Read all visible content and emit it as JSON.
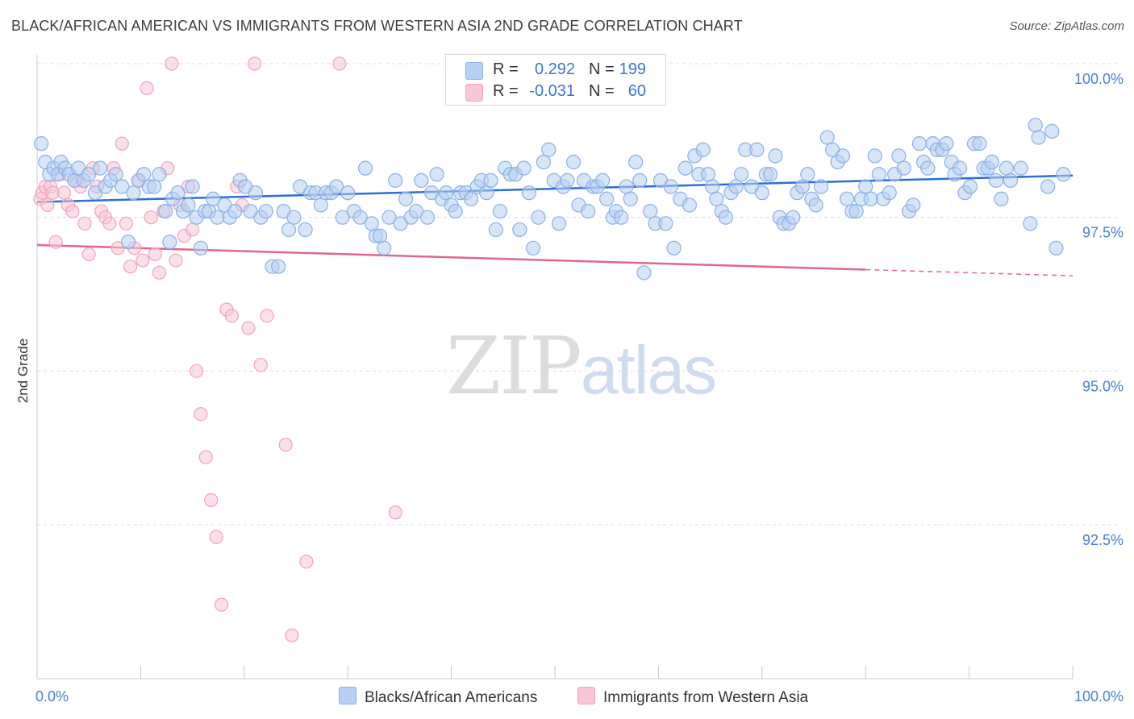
{
  "title": "BLACK/AFRICAN AMERICAN VS IMMIGRANTS FROM WESTERN ASIA 2ND GRADE CORRELATION CHART",
  "source": "Source: ZipAtlas.com",
  "watermark": {
    "zip": "ZIP",
    "atlas": "atlas"
  },
  "legend": {
    "blue": {
      "r_label": "R =",
      "r_value": "0.292",
      "n_label": "N =",
      "n_value": "199"
    },
    "pink": {
      "r_label": "R =",
      "r_value": "-0.031",
      "n_label": "N =",
      "n_value": "60"
    }
  },
  "bottom_legend": {
    "blue": "Blacks/African Americans",
    "pink": "Immigrants from Western Asia"
  },
  "colors": {
    "blue_fill": "#b7d0f3",
    "blue_stroke": "#8ab0e6",
    "blue_line": "#2d6fd2",
    "pink_fill": "#f9c6d5",
    "pink_stroke": "#f0a3bb",
    "pink_line": "#e2668f",
    "tick": "#4a7fd4",
    "grid": "#dcdcdc"
  },
  "chart_data": {
    "type": "scatter",
    "title": "BLACK/AFRICAN AMERICAN VS IMMIGRANTS FROM WESTERN ASIA 2ND GRADE CORRELATION CHART",
    "xlabel": "",
    "ylabel": "2nd Grade",
    "xlim": [
      0,
      100
    ],
    "ylim": [
      90.2,
      100.4
    ],
    "y_ticks": [
      92.5,
      95.0,
      97.5,
      100.0
    ],
    "y_tick_labels": [
      "92.5%",
      "95.0%",
      "97.5%",
      "100.0%"
    ],
    "x_tick_labels": [
      "0.0%",
      "100.0%"
    ],
    "grid": true,
    "legend_position": "top-center",
    "series": [
      {
        "name": "Blacks/African Americans",
        "color": "#8ab0e6",
        "trend": {
          "x": [
            0,
            100
          ],
          "y": [
            97.75,
            98.18
          ]
        },
        "points": [
          [
            0.4,
            98.7
          ],
          [
            0.8,
            98.4
          ],
          [
            1.2,
            98.2
          ],
          [
            1.6,
            98.3
          ],
          [
            2.0,
            98.2
          ],
          [
            2.3,
            98.4
          ],
          [
            2.7,
            98.3
          ],
          [
            3.1,
            98.2
          ],
          [
            3.6,
            98.1
          ],
          [
            4.0,
            98.3
          ],
          [
            4.5,
            98.1
          ],
          [
            5.0,
            98.2
          ],
          [
            5.6,
            97.9
          ],
          [
            6.1,
            98.3
          ],
          [
            6.6,
            98.0
          ],
          [
            7.1,
            98.1
          ],
          [
            7.6,
            98.2
          ],
          [
            8.2,
            98.0
          ],
          [
            8.8,
            97.1
          ],
          [
            9.3,
            97.9
          ],
          [
            9.8,
            98.1
          ],
          [
            10.3,
            98.2
          ],
          [
            10.8,
            98.0
          ],
          [
            11.3,
            98.0
          ],
          [
            11.8,
            98.2
          ],
          [
            12.4,
            97.6
          ],
          [
            12.8,
            97.1
          ],
          [
            13.1,
            97.8
          ],
          [
            13.6,
            97.9
          ],
          [
            14.1,
            97.6
          ],
          [
            14.6,
            97.7
          ],
          [
            15.0,
            98.0
          ],
          [
            15.4,
            97.5
          ],
          [
            15.8,
            97.0
          ],
          [
            16.2,
            97.6
          ],
          [
            16.6,
            97.6
          ],
          [
            17.0,
            97.8
          ],
          [
            17.4,
            97.5
          ],
          [
            18.1,
            97.7
          ],
          [
            18.6,
            97.5
          ],
          [
            19.1,
            97.6
          ],
          [
            19.6,
            98.1
          ],
          [
            20.1,
            98.0
          ],
          [
            20.6,
            97.6
          ],
          [
            21.1,
            97.9
          ],
          [
            21.6,
            97.5
          ],
          [
            22.1,
            97.6
          ],
          [
            22.7,
            96.7
          ],
          [
            23.3,
            96.7
          ],
          [
            23.8,
            97.6
          ],
          [
            24.3,
            97.3
          ],
          [
            24.8,
            97.5
          ],
          [
            25.4,
            98.0
          ],
          [
            25.9,
            97.3
          ],
          [
            26.4,
            97.9
          ],
          [
            26.9,
            97.9
          ],
          [
            27.4,
            97.7
          ],
          [
            27.9,
            97.9
          ],
          [
            28.4,
            97.9
          ],
          [
            28.9,
            98.0
          ],
          [
            29.5,
            97.5
          ],
          [
            30.0,
            97.9
          ],
          [
            30.6,
            97.6
          ],
          [
            31.2,
            97.5
          ],
          [
            31.7,
            98.3
          ],
          [
            32.3,
            97.4
          ],
          [
            32.7,
            97.2
          ],
          [
            33.1,
            97.2
          ],
          [
            33.5,
            97.0
          ],
          [
            34.0,
            97.5
          ],
          [
            34.6,
            98.1
          ],
          [
            35.1,
            97.4
          ],
          [
            35.6,
            97.8
          ],
          [
            36.1,
            97.5
          ],
          [
            36.6,
            97.6
          ],
          [
            37.1,
            98.1
          ],
          [
            37.7,
            97.5
          ],
          [
            38.1,
            97.9
          ],
          [
            38.6,
            98.2
          ],
          [
            39.1,
            97.8
          ],
          [
            39.5,
            97.9
          ],
          [
            40.0,
            97.7
          ],
          [
            40.4,
            97.6
          ],
          [
            40.9,
            97.9
          ],
          [
            41.4,
            97.9
          ],
          [
            41.9,
            97.8
          ],
          [
            42.5,
            98.0
          ],
          [
            42.9,
            98.1
          ],
          [
            43.4,
            97.9
          ],
          [
            43.8,
            98.1
          ],
          [
            44.3,
            97.3
          ],
          [
            44.7,
            97.6
          ],
          [
            45.2,
            98.3
          ],
          [
            45.7,
            98.2
          ],
          [
            46.2,
            98.2
          ],
          [
            46.6,
            97.3
          ],
          [
            47.0,
            98.3
          ],
          [
            47.5,
            97.9
          ],
          [
            47.9,
            97.0
          ],
          [
            48.4,
            97.5
          ],
          [
            48.9,
            98.4
          ],
          [
            49.4,
            98.6
          ],
          [
            49.9,
            98.1
          ],
          [
            50.4,
            97.4
          ],
          [
            50.8,
            98.0
          ],
          [
            51.2,
            98.1
          ],
          [
            51.8,
            98.4
          ],
          [
            52.3,
            97.7
          ],
          [
            52.8,
            98.1
          ],
          [
            53.2,
            97.6
          ],
          [
            53.7,
            98.0
          ],
          [
            54.1,
            98.0
          ],
          [
            54.6,
            98.1
          ],
          [
            55.0,
            97.8
          ],
          [
            55.6,
            97.5
          ],
          [
            55.9,
            97.6
          ],
          [
            56.4,
            97.5
          ],
          [
            56.9,
            98.0
          ],
          [
            57.3,
            97.8
          ],
          [
            57.8,
            98.4
          ],
          [
            58.2,
            98.1
          ],
          [
            58.6,
            96.6
          ],
          [
            59.2,
            97.6
          ],
          [
            59.7,
            97.4
          ],
          [
            60.2,
            98.1
          ],
          [
            60.7,
            97.4
          ],
          [
            61.2,
            98.0
          ],
          [
            61.5,
            97.0
          ],
          [
            62.1,
            97.8
          ],
          [
            62.6,
            98.3
          ],
          [
            63.0,
            97.7
          ],
          [
            63.5,
            98.5
          ],
          [
            63.9,
            98.2
          ],
          [
            64.3,
            98.6
          ],
          [
            64.8,
            98.2
          ],
          [
            65.2,
            98.0
          ],
          [
            65.6,
            97.8
          ],
          [
            66.1,
            97.6
          ],
          [
            66.5,
            97.5
          ],
          [
            67.0,
            97.9
          ],
          [
            67.5,
            98.0
          ],
          [
            68.0,
            98.2
          ],
          [
            68.4,
            98.6
          ],
          [
            69.0,
            98.0
          ],
          [
            69.5,
            98.6
          ],
          [
            70.0,
            97.9
          ],
          [
            70.4,
            98.2
          ],
          [
            70.8,
            98.2
          ],
          [
            71.3,
            98.5
          ],
          [
            71.7,
            97.5
          ],
          [
            72.1,
            97.4
          ],
          [
            72.6,
            97.4
          ],
          [
            73.0,
            97.5
          ],
          [
            73.4,
            97.9
          ],
          [
            73.9,
            98.0
          ],
          [
            74.4,
            98.2
          ],
          [
            74.8,
            97.8
          ],
          [
            75.2,
            97.7
          ],
          [
            75.7,
            98.0
          ],
          [
            76.3,
            98.8
          ],
          [
            76.8,
            98.6
          ],
          [
            77.3,
            98.4
          ],
          [
            77.8,
            98.5
          ],
          [
            78.2,
            97.8
          ],
          [
            78.7,
            97.6
          ],
          [
            79.1,
            97.6
          ],
          [
            79.6,
            97.8
          ],
          [
            80.0,
            98.0
          ],
          [
            80.5,
            97.8
          ],
          [
            80.9,
            98.5
          ],
          [
            81.3,
            98.2
          ],
          [
            81.7,
            97.8
          ],
          [
            82.3,
            97.9
          ],
          [
            82.8,
            98.2
          ],
          [
            83.2,
            98.5
          ],
          [
            83.7,
            98.3
          ],
          [
            84.2,
            97.6
          ],
          [
            84.6,
            97.7
          ],
          [
            85.2,
            98.7
          ],
          [
            85.6,
            98.4
          ],
          [
            86.0,
            98.3
          ],
          [
            86.5,
            98.7
          ],
          [
            86.9,
            98.6
          ],
          [
            87.4,
            98.6
          ],
          [
            87.8,
            98.7
          ],
          [
            88.3,
            98.4
          ],
          [
            88.6,
            98.2
          ],
          [
            89.1,
            98.3
          ],
          [
            89.6,
            97.9
          ],
          [
            90.1,
            98.0
          ],
          [
            90.5,
            98.7
          ],
          [
            91.0,
            98.7
          ],
          [
            91.4,
            98.3
          ],
          [
            91.8,
            98.3
          ],
          [
            92.2,
            98.4
          ],
          [
            92.6,
            98.1
          ],
          [
            93.1,
            97.8
          ],
          [
            93.6,
            98.3
          ],
          [
            94.0,
            98.1
          ],
          [
            95.0,
            98.3
          ],
          [
            95.9,
            97.4
          ],
          [
            96.4,
            99.0
          ],
          [
            96.7,
            98.8
          ],
          [
            97.6,
            98.0
          ],
          [
            98.0,
            98.9
          ],
          [
            98.4,
            97.0
          ],
          [
            99.1,
            98.2
          ]
        ]
      },
      {
        "name": "Immigrants from Western Asia",
        "color": "#f0a3bb",
        "trend": {
          "x": [
            0,
            80
          ],
          "y": [
            97.05,
            96.65
          ],
          "dash_to": [
            100,
            96.55
          ]
        },
        "points": [
          [
            0.3,
            97.8
          ],
          [
            0.5,
            97.9
          ],
          [
            0.8,
            98.0
          ],
          [
            1.0,
            97.7
          ],
          [
            1.3,
            98.0
          ],
          [
            1.5,
            97.9
          ],
          [
            1.8,
            97.1
          ],
          [
            2.2,
            98.2
          ],
          [
            2.6,
            97.9
          ],
          [
            3.0,
            97.7
          ],
          [
            3.4,
            97.6
          ],
          [
            3.8,
            98.1
          ],
          [
            4.2,
            98.0
          ],
          [
            4.6,
            97.4
          ],
          [
            5.0,
            96.9
          ],
          [
            5.4,
            98.3
          ],
          [
            5.8,
            98.0
          ],
          [
            6.2,
            97.6
          ],
          [
            6.6,
            97.5
          ],
          [
            7.0,
            97.4
          ],
          [
            7.4,
            98.3
          ],
          [
            7.8,
            97.0
          ],
          [
            8.2,
            98.7
          ],
          [
            8.6,
            97.4
          ],
          [
            9.0,
            96.7
          ],
          [
            9.4,
            97.0
          ],
          [
            9.8,
            98.1
          ],
          [
            10.2,
            96.8
          ],
          [
            10.6,
            99.6
          ],
          [
            11.0,
            97.5
          ],
          [
            11.4,
            96.9
          ],
          [
            11.8,
            96.6
          ],
          [
            12.2,
            97.6
          ],
          [
            12.6,
            98.3
          ],
          [
            13.0,
            100.0
          ],
          [
            13.4,
            96.8
          ],
          [
            13.8,
            97.7
          ],
          [
            14.2,
            97.2
          ],
          [
            14.6,
            98.0
          ],
          [
            15.0,
            97.3
          ],
          [
            15.4,
            95.0
          ],
          [
            15.8,
            94.3
          ],
          [
            16.3,
            93.6
          ],
          [
            16.8,
            92.9
          ],
          [
            17.3,
            92.3
          ],
          [
            17.8,
            91.2
          ],
          [
            18.3,
            96.0
          ],
          [
            18.8,
            95.9
          ],
          [
            19.3,
            98.0
          ],
          [
            19.8,
            97.7
          ],
          [
            20.4,
            95.7
          ],
          [
            21.0,
            100.0
          ],
          [
            21.6,
            95.1
          ],
          [
            22.2,
            95.9
          ],
          [
            24.0,
            93.8
          ],
          [
            24.6,
            90.7
          ],
          [
            26.0,
            91.9
          ],
          [
            29.2,
            100.0
          ],
          [
            34.6,
            92.7
          ],
          [
            41.5,
            100.0
          ]
        ]
      }
    ]
  }
}
